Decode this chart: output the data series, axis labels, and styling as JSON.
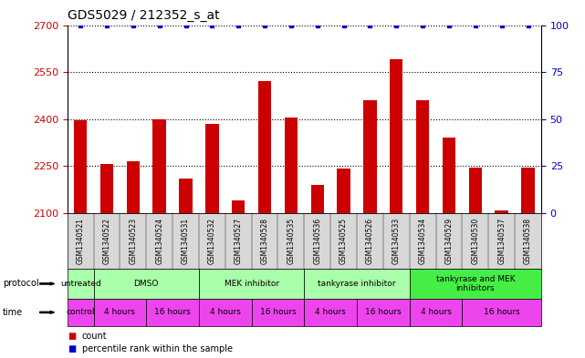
{
  "title": "GDS5029 / 212352_s_at",
  "samples": [
    "GSM1340521",
    "GSM1340522",
    "GSM1340523",
    "GSM1340524",
    "GSM1340531",
    "GSM1340532",
    "GSM1340527",
    "GSM1340528",
    "GSM1340535",
    "GSM1340536",
    "GSM1340525",
    "GSM1340526",
    "GSM1340533",
    "GSM1340534",
    "GSM1340529",
    "GSM1340530",
    "GSM1340537",
    "GSM1340538"
  ],
  "counts": [
    2395,
    2257,
    2265,
    2400,
    2210,
    2385,
    2140,
    2520,
    2405,
    2190,
    2243,
    2460,
    2590,
    2460,
    2340,
    2245,
    2108,
    2245
  ],
  "percentiles": [
    100,
    100,
    100,
    100,
    100,
    100,
    100,
    100,
    100,
    100,
    100,
    100,
    100,
    100,
    100,
    100,
    100,
    100
  ],
  "bar_color": "#cc0000",
  "percentile_color": "#0000cc",
  "ylim_left": [
    2100,
    2700
  ],
  "ylim_right": [
    0,
    100
  ],
  "yticks_left": [
    2100,
    2250,
    2400,
    2550,
    2700
  ],
  "yticks_right": [
    0,
    25,
    50,
    75,
    100
  ],
  "dotted_levels": [
    2250,
    2400,
    2550,
    2700
  ],
  "protocol_groups": [
    {
      "label": "untreated",
      "start": 0,
      "end": 1,
      "color": "#aaffaa"
    },
    {
      "label": "DMSO",
      "start": 1,
      "end": 5,
      "color": "#aaffaa"
    },
    {
      "label": "MEK inhibitor",
      "start": 5,
      "end": 9,
      "color": "#aaffaa"
    },
    {
      "label": "tankyrase inhibitor",
      "start": 9,
      "end": 13,
      "color": "#aaffaa"
    },
    {
      "label": "tankyrase and MEK\ninhibitors",
      "start": 13,
      "end": 18,
      "color": "#44ee44"
    }
  ],
  "time_groups": [
    {
      "label": "control",
      "start": 0,
      "end": 1
    },
    {
      "label": "4 hours",
      "start": 1,
      "end": 3
    },
    {
      "label": "16 hours",
      "start": 3,
      "end": 5
    },
    {
      "label": "4 hours",
      "start": 5,
      "end": 7
    },
    {
      "label": "16 hours",
      "start": 7,
      "end": 9
    },
    {
      "label": "4 hours",
      "start": 9,
      "end": 11
    },
    {
      "label": "16 hours",
      "start": 11,
      "end": 13
    },
    {
      "label": "4 hours",
      "start": 13,
      "end": 15
    },
    {
      "label": "16 hours",
      "start": 15,
      "end": 18
    }
  ],
  "time_color": "#ee44ee",
  "bg_color": "#ffffff",
  "tick_color_left": "#cc0000",
  "tick_color_right": "#0000cc",
  "xtick_bg": "#d8d8d8",
  "legend_items": [
    {
      "label": "count",
      "color": "#cc0000"
    },
    {
      "label": "percentile rank within the sample",
      "color": "#0000cc"
    }
  ]
}
